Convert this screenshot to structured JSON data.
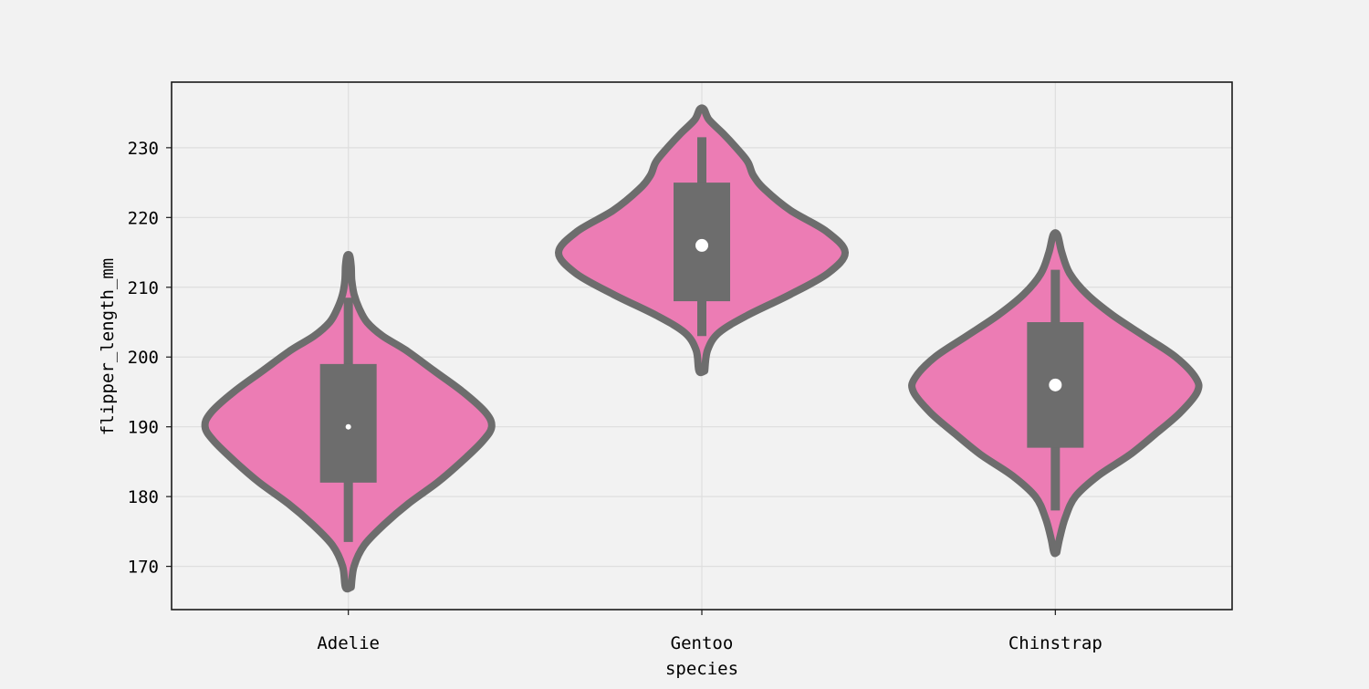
{
  "chart_data": {
    "type": "violin",
    "xlabel": "species",
    "ylabel": "flipper_length_mm",
    "ylim": [
      163.8,
      239.4
    ],
    "yticks": [
      170,
      180,
      190,
      200,
      210,
      220,
      230
    ],
    "grid": true,
    "categories": [
      "Adelie",
      "Gentoo",
      "Chinstrap"
    ],
    "colors": {
      "violin_fill": "#ec7cb4",
      "violin_edge": "#6d6d6d",
      "median": "#ffffff",
      "background": "#f2f2f2",
      "grid": "#dedede"
    },
    "violins": [
      {
        "name": "Adelie",
        "min": 172,
        "q1": 182,
        "median": 190,
        "q3": 199,
        "max": 210,
        "whisker_low": 173.5,
        "whisker_high": 208.5,
        "profile": [
          [
            167,
            0.02
          ],
          [
            170,
            0.04
          ],
          [
            173,
            0.11
          ],
          [
            176,
            0.25
          ],
          [
            179,
            0.42
          ],
          [
            182,
            0.62
          ],
          [
            185,
            0.79
          ],
          [
            188,
            0.94
          ],
          [
            190,
            1.0
          ],
          [
            192,
            0.96
          ],
          [
            195,
            0.8
          ],
          [
            198,
            0.6
          ],
          [
            201,
            0.4
          ],
          [
            203,
            0.24
          ],
          [
            205,
            0.13
          ],
          [
            207,
            0.075
          ],
          [
            209,
            0.04
          ],
          [
            211,
            0.024
          ],
          [
            213,
            0.02
          ],
          [
            214.5,
            0.01
          ]
        ]
      },
      {
        "name": "Gentoo",
        "min": 203,
        "q1": 208,
        "median": 216,
        "q3": 225,
        "max": 231,
        "whisker_low": 203,
        "whisker_high": 231.5,
        "profile": [
          [
            198,
            0.02
          ],
          [
            201,
            0.04
          ],
          [
            203.5,
            0.12
          ],
          [
            206,
            0.32
          ],
          [
            209,
            0.62
          ],
          [
            212,
            0.88
          ],
          [
            215,
            1.0
          ],
          [
            218,
            0.87
          ],
          [
            221,
            0.62
          ],
          [
            224,
            0.44
          ],
          [
            226,
            0.36
          ],
          [
            228,
            0.32
          ],
          [
            230,
            0.24
          ],
          [
            232,
            0.15
          ],
          [
            234,
            0.05
          ],
          [
            235.5,
            0.015
          ]
        ]
      },
      {
        "name": "Chinstrap",
        "min": 178,
        "q1": 187,
        "median": 196,
        "q3": 205,
        "max": 212,
        "whisker_low": 178,
        "whisker_high": 212.5,
        "profile": [
          [
            172,
            0.01
          ],
          [
            174,
            0.03
          ],
          [
            177,
            0.07
          ],
          [
            180,
            0.14
          ],
          [
            183,
            0.3
          ],
          [
            186,
            0.52
          ],
          [
            189,
            0.7
          ],
          [
            192,
            0.87
          ],
          [
            195,
            0.99
          ],
          [
            197,
            0.98
          ],
          [
            200,
            0.84
          ],
          [
            203,
            0.62
          ],
          [
            206,
            0.4
          ],
          [
            209,
            0.22
          ],
          [
            212,
            0.1
          ],
          [
            215,
            0.045
          ],
          [
            217.5,
            0.015
          ]
        ]
      }
    ]
  }
}
